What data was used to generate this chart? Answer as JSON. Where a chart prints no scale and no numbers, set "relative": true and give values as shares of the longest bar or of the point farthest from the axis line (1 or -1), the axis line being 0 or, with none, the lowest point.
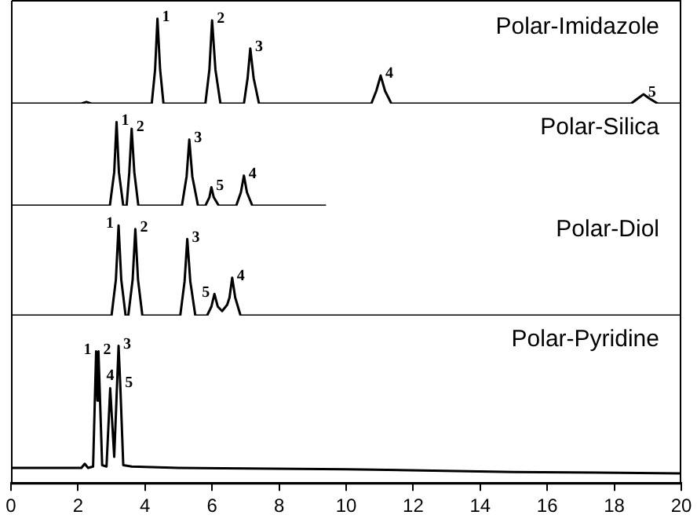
{
  "chart_data": [
    {
      "type": "line",
      "title": "Polar-Imidazole",
      "relative": true,
      "tick_labels": false,
      "xlim": [
        0,
        20
      ],
      "color": "#000000",
      "x": [
        0,
        2.1,
        2.25,
        2.4,
        4.2,
        4.3,
        4.37,
        4.45,
        4.55,
        5.8,
        5.92,
        6.0,
        6.1,
        6.25,
        6.95,
        7.06,
        7.14,
        7.24,
        7.4,
        10.75,
        10.9,
        11.03,
        11.16,
        11.35,
        18.5,
        18.7,
        18.87,
        19.05,
        19.3,
        20
      ],
      "values": [
        0,
        0,
        0.02,
        0,
        0,
        0.4,
        1.0,
        0.4,
        0,
        0,
        0.4,
        0.98,
        0.4,
        0,
        0,
        0.3,
        0.65,
        0.3,
        0,
        0,
        0.15,
        0.33,
        0.15,
        0,
        0,
        0.06,
        0.11,
        0.06,
        0,
        0
      ],
      "annotations": [
        {
          "text": "1",
          "x": 4.37,
          "y": 1.0
        },
        {
          "text": "2",
          "x": 6.0,
          "y": 0.98
        },
        {
          "text": "3",
          "x": 7.14,
          "y": 0.65
        },
        {
          "text": "4",
          "x": 11.03,
          "y": 0.33
        },
        {
          "text": "5",
          "x": 18.87,
          "y": 0.11
        }
      ]
    },
    {
      "type": "line",
      "title": "Polar-Silica",
      "relative": true,
      "tick_labels": false,
      "xlim": [
        0,
        20
      ],
      "color": "#000000",
      "x": [
        0,
        2.95,
        3.08,
        3.15,
        3.22,
        3.35,
        3.45,
        3.53,
        3.6,
        3.68,
        3.8,
        5.1,
        5.24,
        5.32,
        5.41,
        5.58,
        5.8,
        5.92,
        5.98,
        6.05,
        6.2,
        6.72,
        6.86,
        6.95,
        7.04,
        7.2,
        9.4
      ],
      "values": [
        0,
        0,
        0.4,
        1.0,
        0.4,
        0,
        0,
        0.4,
        0.92,
        0.4,
        0,
        0,
        0.35,
        0.79,
        0.35,
        0,
        0,
        0.1,
        0.22,
        0.1,
        0,
        0,
        0.16,
        0.36,
        0.16,
        0,
        0
      ],
      "annotations": [
        {
          "text": "1",
          "x": 3.15,
          "y": 1.0
        },
        {
          "text": "2",
          "x": 3.6,
          "y": 0.92
        },
        {
          "text": "3",
          "x": 5.32,
          "y": 0.79
        },
        {
          "text": "5",
          "x": 5.98,
          "y": 0.22
        },
        {
          "text": "4",
          "x": 6.95,
          "y": 0.36
        }
      ]
    },
    {
      "type": "line",
      "title": "Polar-Diol",
      "relative": true,
      "tick_labels": false,
      "xlim": [
        0,
        20
      ],
      "color": "#000000",
      "x": [
        0,
        3.0,
        3.13,
        3.21,
        3.29,
        3.42,
        3.5,
        3.63,
        3.71,
        3.79,
        3.92,
        5.05,
        5.18,
        5.26,
        5.35,
        5.5,
        5.85,
        5.98,
        6.07,
        6.17,
        6.3,
        6.45,
        6.52,
        6.6,
        6.69,
        6.85,
        20
      ],
      "values": [
        0,
        0,
        0.4,
        1.0,
        0.4,
        0,
        0,
        0.4,
        0.96,
        0.4,
        0,
        0,
        0.38,
        0.85,
        0.38,
        0,
        0,
        0.1,
        0.24,
        0.1,
        0.05,
        0.12,
        0.2,
        0.42,
        0.2,
        0,
        0
      ],
      "annotations": [
        {
          "text": "1",
          "x": 3.21,
          "y": 1.0
        },
        {
          "text": "2",
          "x": 3.71,
          "y": 0.96
        },
        {
          "text": "3",
          "x": 5.26,
          "y": 0.85
        },
        {
          "text": "5",
          "x": 6.07,
          "y": 0.24
        },
        {
          "text": "4",
          "x": 6.6,
          "y": 0.42
        }
      ]
    },
    {
      "type": "line",
      "title": "Polar-Pyridine",
      "relative": true,
      "tick_labels": "x",
      "xlim": [
        0,
        20
      ],
      "xticks": [
        0,
        2,
        4,
        6,
        8,
        10,
        12,
        14,
        16,
        18,
        20
      ],
      "color": "#000000",
      "x": [
        0,
        2.1,
        2.2,
        2.3,
        2.45,
        2.54,
        2.58,
        2.61,
        2.72,
        2.85,
        2.96,
        3.08,
        3.21,
        3.26,
        3.35,
        3.6,
        5,
        10,
        15,
        20
      ],
      "values": [
        0.11,
        0.11,
        0.14,
        0.11,
        0.12,
        0.96,
        0.6,
        0.96,
        0.13,
        0.12,
        0.69,
        0.19,
        1.0,
        0.72,
        0.13,
        0.12,
        0.11,
        0.1,
        0.08,
        0.07
      ],
      "annotations": [
        {
          "text": "1",
          "x": 2.54,
          "y": 0.96
        },
        {
          "text": "2",
          "x": 2.61,
          "y": 0.96
        },
        {
          "text": "4",
          "x": 2.96,
          "y": 0.69
        },
        {
          "text": "3",
          "x": 3.21,
          "y": 1.0
        },
        {
          "text": "5",
          "x": 3.26,
          "y": 0.72
        }
      ]
    }
  ]
}
